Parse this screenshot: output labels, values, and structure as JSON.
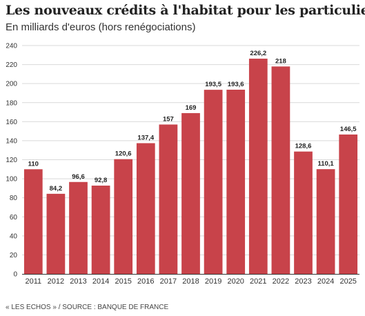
{
  "chart_data": {
    "type": "bar",
    "title": "Les nouveaux crédits à l'habitat pour les particuliers",
    "subtitle": "En milliards d'euros (hors renégociations)",
    "categories": [
      "2011",
      "2012",
      "2013",
      "2014",
      "2015",
      "2016",
      "2017",
      "2018",
      "2019",
      "2020",
      "2021",
      "2022",
      "2023",
      "2024",
      "2025"
    ],
    "values": [
      110,
      84.2,
      96.6,
      92.8,
      120.6,
      137.4,
      157,
      169,
      193.5,
      193.6,
      226.2,
      218,
      128.6,
      110.1,
      146.5
    ],
    "value_labels": [
      "110",
      "84,2",
      "96,6",
      "92,8",
      "120,6",
      "137,4",
      "157",
      "169",
      "193,5",
      "193,6",
      "226,2",
      "218",
      "128,6",
      "110,1",
      "146,5"
    ],
    "yticks": [
      0,
      20,
      40,
      60,
      80,
      100,
      120,
      140,
      160,
      180,
      200,
      220,
      240
    ],
    "ylim": [
      0,
      240
    ],
    "grid": true,
    "bar_color": "#c8434a",
    "xlabel": "",
    "ylabel": ""
  },
  "source": "« LES ECHOS » / SOURCE : BANQUE DE FRANCE"
}
